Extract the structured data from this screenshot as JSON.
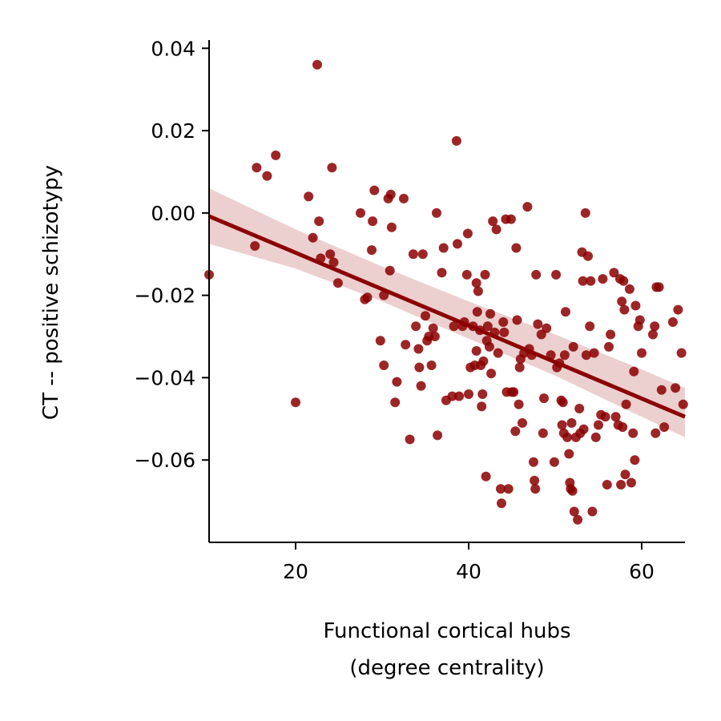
{
  "chart_data": {
    "type": "scatter",
    "title": "",
    "xlabel_lines": [
      "Functional cortical hubs",
      "(degree centrality)"
    ],
    "ylabel": "CT -- positive schizotypy",
    "xlim": [
      10,
      65
    ],
    "ylim": [
      -0.08,
      0.042
    ],
    "x_ticks": [
      20,
      40,
      60
    ],
    "x_tick_labels": [
      "20",
      "40",
      "60"
    ],
    "y_ticks": [
      0.04,
      0.02,
      0.0,
      -0.02,
      -0.04,
      -0.06
    ],
    "y_tick_labels": [
      "0.04",
      "0.02",
      "0.00",
      "−0.02",
      "−0.04",
      "−0.06"
    ],
    "grid": false,
    "legend": "none",
    "colors": {
      "points": "#8b0000",
      "line": "#8b0000",
      "band": "#d9a0a0"
    },
    "regression": {
      "x0": 10,
      "y0": -0.0008,
      "x1": 65,
      "y1": -0.0495
    },
    "confidence_band": {
      "x": [
        10,
        20,
        30,
        40,
        50,
        60,
        65
      ],
      "upper": [
        0.006,
        -0.004,
        -0.013,
        -0.0215,
        -0.0295,
        -0.038,
        -0.0425
      ],
      "lower": [
        -0.0075,
        -0.0135,
        -0.0215,
        -0.0305,
        -0.0395,
        -0.0495,
        -0.0545
      ]
    },
    "points": [
      [
        10,
        -0.015
      ],
      [
        15.3,
        -0.008
      ],
      [
        15.5,
        0.011
      ],
      [
        16.7,
        0.009
      ],
      [
        17.7,
        0.014
      ],
      [
        20,
        -0.046
      ],
      [
        21.5,
        0.004
      ],
      [
        22,
        -0.006
      ],
      [
        22.5,
        0.036
      ],
      [
        22.7,
        -0.002
      ],
      [
        22.9,
        -0.011
      ],
      [
        24,
        -0.01
      ],
      [
        24.2,
        0.011
      ],
      [
        24.4,
        -0.012
      ],
      [
        24.9,
        -0.017
      ],
      [
        27.5,
        0.0
      ],
      [
        28,
        -0.021
      ],
      [
        28.3,
        -0.0205
      ],
      [
        28.8,
        -0.009
      ],
      [
        28.9,
        -0.002
      ],
      [
        29.1,
        0.0055
      ],
      [
        29.8,
        -0.031
      ],
      [
        30.2,
        -0.02
      ],
      [
        30.2,
        -0.037
      ],
      [
        30.7,
        0.0035
      ],
      [
        30.9,
        -0.014
      ],
      [
        31,
        0.0045
      ],
      [
        31.1,
        -0.0035
      ],
      [
        31.5,
        -0.046
      ],
      [
        31.7,
        -0.041
      ],
      [
        32.5,
        0.0035
      ],
      [
        32.7,
        -0.032
      ],
      [
        33.2,
        -0.055
      ],
      [
        33.6,
        -0.01
      ],
      [
        33.9,
        -0.0275
      ],
      [
        34.2,
        -0.033
      ],
      [
        34.3,
        -0.0375
      ],
      [
        34.5,
        -0.042
      ],
      [
        34.7,
        -0.01
      ],
      [
        35,
        -0.025
      ],
      [
        35.2,
        -0.031
      ],
      [
        35.4,
        -0.03
      ],
      [
        35.7,
        -0.037
      ],
      [
        35.9,
        -0.028
      ],
      [
        36.1,
        -0.03
      ],
      [
        36.3,
        0.0
      ],
      [
        36.4,
        -0.054
      ],
      [
        36.9,
        -0.0145
      ],
      [
        37.1,
        -0.0085
      ],
      [
        37.4,
        -0.0455
      ],
      [
        38.1,
        -0.0445
      ],
      [
        38.3,
        -0.0275
      ],
      [
        38.6,
        0.0175
      ],
      [
        38.7,
        -0.0075
      ],
      [
        38.9,
        -0.0445
      ],
      [
        39.3,
        -0.0275
      ],
      [
        39.5,
        -0.0265
      ],
      [
        39.8,
        -0.015
      ],
      [
        39.9,
        -0.005
      ],
      [
        40,
        -0.044
      ],
      [
        40.2,
        -0.0375
      ],
      [
        40.5,
        -0.0275
      ],
      [
        40.7,
        -0.037
      ],
      [
        40.9,
        -0.017
      ],
      [
        40.9,
        -0.0335
      ],
      [
        41,
        -0.024
      ],
      [
        41.1,
        -0.019
      ],
      [
        41.3,
        -0.0285
      ],
      [
        41.4,
        -0.037
      ],
      [
        41.5,
        -0.047
      ],
      [
        41.6,
        -0.044
      ],
      [
        41.7,
        -0.036
      ],
      [
        41.9,
        -0.015
      ],
      [
        42,
        -0.064
      ],
      [
        42.1,
        -0.031
      ],
      [
        42.2,
        -0.0275
      ],
      [
        42.4,
        -0.0325
      ],
      [
        42.5,
        -0.0245
      ],
      [
        42.6,
        -0.039
      ],
      [
        42.8,
        -0.002
      ],
      [
        43,
        -0.029
      ],
      [
        43.2,
        -0.004
      ],
      [
        43.4,
        -0.034
      ],
      [
        43.7,
        -0.067
      ],
      [
        43.8,
        -0.0705
      ],
      [
        44,
        -0.0265
      ],
      [
        44.1,
        -0.029
      ],
      [
        44.3,
        -0.0015
      ],
      [
        44.4,
        -0.0435
      ],
      [
        44.6,
        -0.067
      ],
      [
        44.9,
        -0.0015
      ],
      [
        45,
        -0.0435
      ],
      [
        45.2,
        -0.0435
      ],
      [
        45.4,
        -0.053
      ],
      [
        45.5,
        -0.0085
      ],
      [
        45.6,
        -0.026
      ],
      [
        45.8,
        -0.0465
      ],
      [
        45.9,
        -0.0375
      ],
      [
        46,
        -0.0355
      ],
      [
        46.2,
        -0.051
      ],
      [
        46.4,
        -0.034
      ],
      [
        46.8,
        0.0015
      ],
      [
        47,
        -0.033
      ],
      [
        47.3,
        -0.0345
      ],
      [
        47.5,
        -0.0605
      ],
      [
        47.6,
        -0.065
      ],
      [
        47.7,
        -0.067
      ],
      [
        47.8,
        -0.015
      ],
      [
        48,
        -0.027
      ],
      [
        48.4,
        -0.0295
      ],
      [
        48.6,
        -0.0535
      ],
      [
        48.7,
        -0.045
      ],
      [
        49,
        -0.028
      ],
      [
        49.5,
        -0.0345
      ],
      [
        49.9,
        -0.0605
      ],
      [
        50.1,
        -0.015
      ],
      [
        50.2,
        -0.0375
      ],
      [
        50.5,
        -0.0365
      ],
      [
        50.7,
        -0.0455
      ],
      [
        50.8,
        -0.0515
      ],
      [
        50.9,
        -0.046
      ],
      [
        51,
        -0.0535
      ],
      [
        51.1,
        -0.0345
      ],
      [
        51.2,
        -0.024
      ],
      [
        51.4,
        -0.0545
      ],
      [
        51.6,
        -0.0585
      ],
      [
        51.7,
        -0.0655
      ],
      [
        51.8,
        -0.067
      ],
      [
        51.9,
        -0.051
      ],
      [
        52,
        -0.0675
      ],
      [
        52.1,
        -0.0325
      ],
      [
        52.2,
        -0.0725
      ],
      [
        52.4,
        -0.0545
      ],
      [
        52.6,
        -0.0745
      ],
      [
        52.8,
        -0.0475
      ],
      [
        52.9,
        -0.0535
      ],
      [
        53.1,
        -0.0095
      ],
      [
        53.2,
        -0.0165
      ],
      [
        53.3,
        -0.0525
      ],
      [
        53.5,
        0.0
      ],
      [
        53.6,
        -0.0345
      ],
      [
        53.8,
        -0.0105
      ],
      [
        54,
        -0.0275
      ],
      [
        54.1,
        -0.0165
      ],
      [
        54.3,
        -0.0725
      ],
      [
        54.5,
        -0.034
      ],
      [
        54.7,
        -0.0545
      ],
      [
        55,
        -0.0515
      ],
      [
        55.3,
        -0.049
      ],
      [
        55.5,
        -0.016
      ],
      [
        55.8,
        -0.0495
      ],
      [
        56,
        -0.066
      ],
      [
        56.2,
        -0.0325
      ],
      [
        56.4,
        -0.0295
      ],
      [
        56.8,
        -0.0145
      ],
      [
        57,
        -0.0495
      ],
      [
        57.3,
        -0.0515
      ],
      [
        57.5,
        -0.016
      ],
      [
        57.6,
        -0.066
      ],
      [
        57.7,
        -0.0215
      ],
      [
        57.8,
        -0.052
      ],
      [
        57.9,
        -0.0165
      ],
      [
        58,
        -0.0235
      ],
      [
        58.1,
        -0.0635
      ],
      [
        58.2,
        -0.0465
      ],
      [
        58.6,
        -0.0185
      ],
      [
        58.8,
        -0.0655
      ],
      [
        59,
        -0.0535
      ],
      [
        59.1,
        -0.0385
      ],
      [
        59.2,
        -0.06
      ],
      [
        59.3,
        -0.0225
      ],
      [
        59.6,
        -0.0275
      ],
      [
        59.8,
        -0.026
      ],
      [
        60,
        -0.034
      ],
      [
        61.3,
        -0.0295
      ],
      [
        61.5,
        -0.0275
      ],
      [
        61.6,
        -0.0535
      ],
      [
        61.7,
        -0.018
      ],
      [
        62,
        -0.018
      ],
      [
        62.3,
        -0.043
      ],
      [
        62.6,
        -0.052
      ],
      [
        63.6,
        -0.0265
      ],
      [
        63.9,
        -0.0425
      ],
      [
        64.2,
        -0.0235
      ],
      [
        64.6,
        -0.034
      ],
      [
        64.8,
        -0.0465
      ]
    ]
  }
}
